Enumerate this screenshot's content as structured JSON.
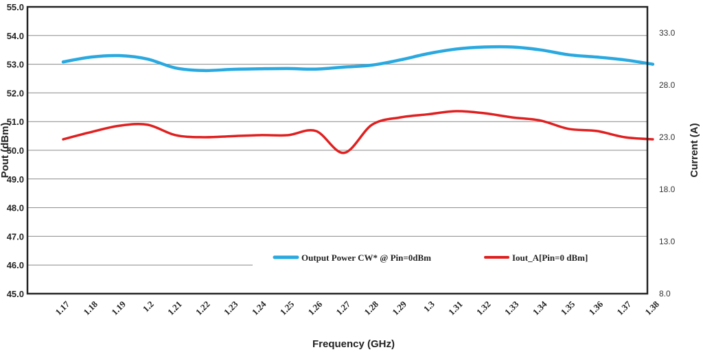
{
  "chart_data": {
    "type": "line",
    "title": "",
    "xlabel": "Frequency (GHz)",
    "ylabel_left": "Pout (dBm)",
    "ylabel_right": "Current (A)",
    "categories": [
      "1.17",
      "1.18",
      "1.19",
      "1.2",
      "1.21",
      "1.22",
      "1.23",
      "1.24",
      "1.25",
      "1.26",
      "1.27",
      "1.28",
      "1.29",
      "1.3",
      "1.31",
      "1.32",
      "1.33",
      "1.34",
      "1.35",
      "1.36",
      "1.37",
      "1.38"
    ],
    "ylim_left": [
      45.0,
      55.0
    ],
    "ylim_right": [
      8.0,
      35.5
    ],
    "yticks_left": [
      "45.0",
      "46.0",
      "47.0",
      "48.0",
      "49.0",
      "50.0",
      "51.0",
      "52.0",
      "53.0",
      "54.0",
      "55.0"
    ],
    "yticks_right": [
      "8.0",
      "13.0",
      "18.0",
      "23.0",
      "28.0",
      "33.0"
    ],
    "grid": true,
    "legend_position": "lower-right",
    "series": [
      {
        "name": "Output Power CW* @ Pin=0dBm",
        "axis": "left",
        "color": "#29a9e0",
        "values": [
          53.08,
          53.25,
          53.3,
          53.18,
          52.87,
          52.78,
          52.82,
          52.84,
          52.85,
          52.83,
          52.9,
          52.97,
          53.15,
          53.37,
          53.53,
          53.6,
          53.6,
          53.5,
          53.33,
          53.25,
          53.15,
          53.0
        ]
      },
      {
        "name": "Iout_A[Pin=0 dBm]",
        "axis": "right",
        "color": "#e02020",
        "values": [
          22.8,
          23.5,
          24.1,
          24.2,
          23.2,
          23.0,
          23.1,
          23.2,
          23.2,
          23.6,
          21.5,
          24.2,
          24.9,
          25.2,
          25.5,
          25.3,
          24.9,
          24.6,
          23.8,
          23.6,
          23.0,
          22.8
        ]
      }
    ]
  }
}
